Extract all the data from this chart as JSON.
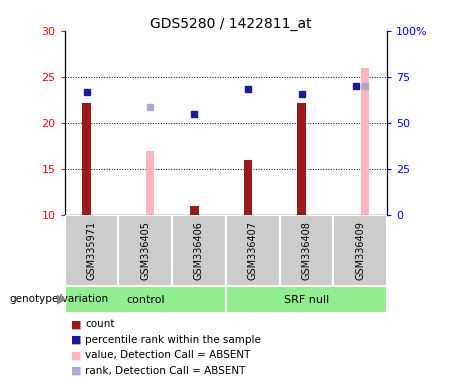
{
  "title": "GDS5280 / 1422811_at",
  "samples": [
    "GSM335971",
    "GSM336405",
    "GSM336406",
    "GSM336407",
    "GSM336408",
    "GSM336409"
  ],
  "ylim_left": [
    10,
    30
  ],
  "ylim_right": [
    0,
    100
  ],
  "yticks_left": [
    10,
    15,
    20,
    25,
    30
  ],
  "yticks_right": [
    0,
    25,
    50,
    75,
    100
  ],
  "yticklabels_right": [
    "0",
    "25",
    "50",
    "75",
    "100%"
  ],
  "count_values": [
    22.2,
    null,
    11.0,
    16.0,
    22.2,
    null
  ],
  "rank_values": [
    23.3,
    null,
    21.0,
    23.7,
    23.1,
    24.0
  ],
  "absent_value_bars": [
    null,
    17.0,
    null,
    null,
    null,
    26.0
  ],
  "absent_rank_dots": [
    null,
    21.7,
    null,
    null,
    null,
    24.0
  ],
  "count_color": "#9b1a1a",
  "rank_color": "#1a1a9b",
  "absent_value_color": "#ffb6c1",
  "absent_rank_color": "#aaaacc",
  "control_color": "#90ee90",
  "srf_color": "#90ee90",
  "group_bg": "#cccccc",
  "legend_items": [
    {
      "label": "count",
      "color": "#9b1a1a"
    },
    {
      "label": "percentile rank within the sample",
      "color": "#1a1a9b"
    },
    {
      "label": "value, Detection Call = ABSENT",
      "color": "#ffb6c1"
    },
    {
      "label": "rank, Detection Call = ABSENT",
      "color": "#aaaacc"
    }
  ]
}
